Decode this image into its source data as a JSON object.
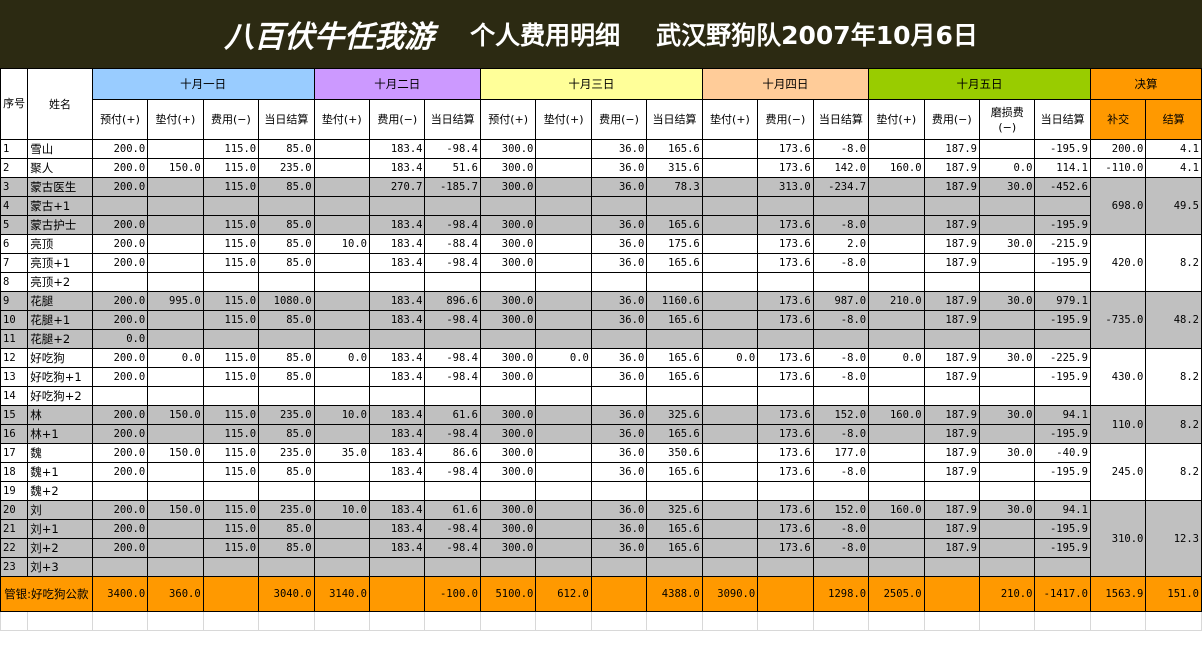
{
  "title": {
    "main": "八百伏牛任我游",
    "sub": "个人费用明细",
    "sub2": "武汉野狗队2007年10月6日"
  },
  "headers": {
    "seq": "序号",
    "name": "姓名",
    "days": [
      "十月一日",
      "十月二日",
      "十月三日",
      "十月四日",
      "十月五日"
    ],
    "settle": "决算",
    "sub": [
      [
        "预付(+)",
        "垫付(+)",
        "费用(−)",
        "当日结算"
      ],
      [
        "垫付(+)",
        "费用(−)",
        "当日结算"
      ],
      [
        "预付(+)",
        "垫付(+)",
        "费用(−)",
        "当日结算"
      ],
      [
        "垫付(+)",
        "费用(−)",
        "当日结算"
      ],
      [
        "垫付(+)",
        "费用(−)",
        "磨损费(−)",
        "当日结算"
      ],
      [
        "补交",
        "结算"
      ]
    ]
  },
  "colors": {
    "title_bg": "#2c2a12",
    "day1": "#99ccff",
    "day2": "#cc99ff",
    "day3": "#ffff99",
    "day4": "#ffcc99",
    "day5": "#99cc00",
    "settle": "#ff9900",
    "group_gray": "#c0c0c0",
    "footer": "#ff9900"
  },
  "rows": [
    {
      "seq": "1",
      "name": "雪山",
      "d1": [
        "200.0",
        "",
        "115.0",
        "85.0"
      ],
      "d2": [
        "",
        "183.4",
        "-98.4"
      ],
      "d3": [
        "300.0",
        "",
        "36.0",
        "165.6"
      ],
      "d4": [
        "",
        "173.6",
        "-8.0"
      ],
      "d5": [
        "",
        "187.9",
        "",
        "-195.9"
      ]
    },
    {
      "seq": "2",
      "name": "聚人",
      "d1": [
        "200.0",
        "150.0",
        "115.0",
        "235.0"
      ],
      "d2": [
        "",
        "183.4",
        "51.6"
      ],
      "d3": [
        "300.0",
        "",
        "36.0",
        "315.6"
      ],
      "d4": [
        "",
        "173.6",
        "142.0"
      ],
      "d5": [
        "160.0",
        "187.9",
        "0.0",
        "114.1"
      ]
    },
    {
      "seq": "3",
      "name": "蒙古医生",
      "d1": [
        "200.0",
        "",
        "115.0",
        "85.0"
      ],
      "d2": [
        "",
        "270.7",
        "-185.7"
      ],
      "d3": [
        "300.0",
        "",
        "36.0",
        "78.3"
      ],
      "d4": [
        "",
        "313.0",
        "-234.7"
      ],
      "d5": [
        "",
        "187.9",
        "30.0",
        "-452.6"
      ]
    },
    {
      "seq": "4",
      "name": "蒙古+1",
      "d1": [
        "",
        "",
        "",
        ""
      ],
      "d2": [
        "",
        "",
        ""
      ],
      "d3": [
        "",
        "",
        "",
        ""
      ],
      "d4": [
        "",
        "",
        ""
      ],
      "d5": [
        "",
        "",
        "",
        ""
      ]
    },
    {
      "seq": "5",
      "name": "蒙古护士",
      "d1": [
        "200.0",
        "",
        "115.0",
        "85.0"
      ],
      "d2": [
        "",
        "183.4",
        "-98.4"
      ],
      "d3": [
        "300.0",
        "",
        "36.0",
        "165.6"
      ],
      "d4": [
        "",
        "173.6",
        "-8.0"
      ],
      "d5": [
        "",
        "187.9",
        "",
        "-195.9"
      ]
    },
    {
      "seq": "6",
      "name": "亮顶",
      "d1": [
        "200.0",
        "",
        "115.0",
        "85.0"
      ],
      "d2": [
        "10.0",
        "183.4",
        "-88.4"
      ],
      "d3": [
        "300.0",
        "",
        "36.0",
        "175.6"
      ],
      "d4": [
        "",
        "173.6",
        "2.0"
      ],
      "d5": [
        "",
        "187.9",
        "30.0",
        "-215.9"
      ]
    },
    {
      "seq": "7",
      "name": "亮顶+1",
      "d1": [
        "200.0",
        "",
        "115.0",
        "85.0"
      ],
      "d2": [
        "",
        "183.4",
        "-98.4"
      ],
      "d3": [
        "300.0",
        "",
        "36.0",
        "165.6"
      ],
      "d4": [
        "",
        "173.6",
        "-8.0"
      ],
      "d5": [
        "",
        "187.9",
        "",
        "-195.9"
      ]
    },
    {
      "seq": "8",
      "name": "亮顶+2",
      "d1": [
        "",
        "",
        "",
        ""
      ],
      "d2": [
        "",
        "",
        ""
      ],
      "d3": [
        "",
        "",
        "",
        ""
      ],
      "d4": [
        "",
        "",
        ""
      ],
      "d5": [
        "",
        "",
        "",
        ""
      ]
    },
    {
      "seq": "9",
      "name": "花腿",
      "d1": [
        "200.0",
        "995.0",
        "115.0",
        "1080.0"
      ],
      "d2": [
        "",
        "183.4",
        "896.6"
      ],
      "d3": [
        "300.0",
        "",
        "36.0",
        "1160.6"
      ],
      "d4": [
        "",
        "173.6",
        "987.0"
      ],
      "d5": [
        "210.0",
        "187.9",
        "30.0",
        "979.1"
      ]
    },
    {
      "seq": "10",
      "name": "花腿+1",
      "d1": [
        "200.0",
        "",
        "115.0",
        "85.0"
      ],
      "d2": [
        "",
        "183.4",
        "-98.4"
      ],
      "d3": [
        "300.0",
        "",
        "36.0",
        "165.6"
      ],
      "d4": [
        "",
        "173.6",
        "-8.0"
      ],
      "d5": [
        "",
        "187.9",
        "",
        "-195.9"
      ]
    },
    {
      "seq": "11",
      "name": "花腿+2",
      "d1": [
        "0.0",
        "",
        "",
        ""
      ],
      "d2": [
        "",
        "",
        ""
      ],
      "d3": [
        "",
        "",
        "",
        ""
      ],
      "d4": [
        "",
        "",
        ""
      ],
      "d5": [
        "",
        "",
        "",
        ""
      ]
    },
    {
      "seq": "12",
      "name": "好吃狗",
      "d1": [
        "200.0",
        "0.0",
        "115.0",
        "85.0"
      ],
      "d2": [
        "0.0",
        "183.4",
        "-98.4"
      ],
      "d3": [
        "300.0",
        "0.0",
        "36.0",
        "165.6"
      ],
      "d4": [
        "0.0",
        "173.6",
        "-8.0"
      ],
      "d5": [
        "0.0",
        "187.9",
        "30.0",
        "-225.9"
      ]
    },
    {
      "seq": "13",
      "name": "好吃狗+1",
      "d1": [
        "200.0",
        "",
        "115.0",
        "85.0"
      ],
      "d2": [
        "",
        "183.4",
        "-98.4"
      ],
      "d3": [
        "300.0",
        "",
        "36.0",
        "165.6"
      ],
      "d4": [
        "",
        "173.6",
        "-8.0"
      ],
      "d5": [
        "",
        "187.9",
        "",
        "-195.9"
      ]
    },
    {
      "seq": "14",
      "name": "好吃狗+2",
      "d1": [
        "",
        "",
        "",
        ""
      ],
      "d2": [
        "",
        "",
        ""
      ],
      "d3": [
        "",
        "",
        "",
        ""
      ],
      "d4": [
        "",
        "",
        ""
      ],
      "d5": [
        "",
        "",
        "",
        ""
      ]
    },
    {
      "seq": "15",
      "name": "林",
      "d1": [
        "200.0",
        "150.0",
        "115.0",
        "235.0"
      ],
      "d2": [
        "10.0",
        "183.4",
        "61.6"
      ],
      "d3": [
        "300.0",
        "",
        "36.0",
        "325.6"
      ],
      "d4": [
        "",
        "173.6",
        "152.0"
      ],
      "d5": [
        "160.0",
        "187.9",
        "30.0",
        "94.1"
      ]
    },
    {
      "seq": "16",
      "name": "林+1",
      "d1": [
        "200.0",
        "",
        "115.0",
        "85.0"
      ],
      "d2": [
        "",
        "183.4",
        "-98.4"
      ],
      "d3": [
        "300.0",
        "",
        "36.0",
        "165.6"
      ],
      "d4": [
        "",
        "173.6",
        "-8.0"
      ],
      "d5": [
        "",
        "187.9",
        "",
        "-195.9"
      ]
    },
    {
      "seq": "17",
      "name": "魏",
      "d1": [
        "200.0",
        "150.0",
        "115.0",
        "235.0"
      ],
      "d2": [
        "35.0",
        "183.4",
        "86.6"
      ],
      "d3": [
        "300.0",
        "",
        "36.0",
        "350.6"
      ],
      "d4": [
        "",
        "173.6",
        "177.0"
      ],
      "d5": [
        "",
        "187.9",
        "30.0",
        "-40.9"
      ]
    },
    {
      "seq": "18",
      "name": "魏+1",
      "d1": [
        "200.0",
        "",
        "115.0",
        "85.0"
      ],
      "d2": [
        "",
        "183.4",
        "-98.4"
      ],
      "d3": [
        "300.0",
        "",
        "36.0",
        "165.6"
      ],
      "d4": [
        "",
        "173.6",
        "-8.0"
      ],
      "d5": [
        "",
        "187.9",
        "",
        "-195.9"
      ]
    },
    {
      "seq": "19",
      "name": "魏+2",
      "d1": [
        "",
        "",
        "",
        ""
      ],
      "d2": [
        "",
        "",
        ""
      ],
      "d3": [
        "",
        "",
        "",
        ""
      ],
      "d4": [
        "",
        "",
        ""
      ],
      "d5": [
        "",
        "",
        "",
        ""
      ]
    },
    {
      "seq": "20",
      "name": "刘",
      "d1": [
        "200.0",
        "150.0",
        "115.0",
        "235.0"
      ],
      "d2": [
        "10.0",
        "183.4",
        "61.6"
      ],
      "d3": [
        "300.0",
        "",
        "36.0",
        "325.6"
      ],
      "d4": [
        "",
        "173.6",
        "152.0"
      ],
      "d5": [
        "160.0",
        "187.9",
        "30.0",
        "94.1"
      ]
    },
    {
      "seq": "21",
      "name": "刘+1",
      "d1": [
        "200.0",
        "",
        "115.0",
        "85.0"
      ],
      "d2": [
        "",
        "183.4",
        "-98.4"
      ],
      "d3": [
        "300.0",
        "",
        "36.0",
        "165.6"
      ],
      "d4": [
        "",
        "173.6",
        "-8.0"
      ],
      "d5": [
        "",
        "187.9",
        "",
        "-195.9"
      ]
    },
    {
      "seq": "22",
      "name": "刘+2",
      "d1": [
        "200.0",
        "",
        "115.0",
        "85.0"
      ],
      "d2": [
        "",
        "183.4",
        "-98.4"
      ],
      "d3": [
        "300.0",
        "",
        "36.0",
        "165.6"
      ],
      "d4": [
        "",
        "173.6",
        "-8.0"
      ],
      "d5": [
        "",
        "187.9",
        "",
        "-195.9"
      ]
    },
    {
      "seq": "23",
      "name": "刘+3",
      "d1": [
        "",
        "",
        "",
        ""
      ],
      "d2": [
        "",
        "",
        ""
      ],
      "d3": [
        "",
        "",
        "",
        ""
      ],
      "d4": [
        "",
        "",
        ""
      ],
      "d5": [
        "",
        "",
        "",
        ""
      ]
    }
  ],
  "groups": [
    {
      "rows": [
        0
      ],
      "gray": false,
      "settle": [
        "200.0",
        "4.1"
      ]
    },
    {
      "rows": [
        1
      ],
      "gray": false,
      "settle": [
        "-110.0",
        "4.1"
      ]
    },
    {
      "rows": [
        2,
        3,
        4
      ],
      "gray": true,
      "settle": [
        "698.0",
        "49.5"
      ]
    },
    {
      "rows": [
        5,
        6,
        7
      ],
      "gray": false,
      "settle": [
        "420.0",
        "8.2"
      ]
    },
    {
      "rows": [
        8,
        9,
        10
      ],
      "gray": true,
      "settle": [
        "-735.0",
        "48.2"
      ]
    },
    {
      "rows": [
        11,
        12,
        13
      ],
      "gray": false,
      "settle": [
        "430.0",
        "8.2"
      ]
    },
    {
      "rows": [
        14,
        15
      ],
      "gray": true,
      "settle": [
        "110.0",
        "8.2"
      ]
    },
    {
      "rows": [
        16,
        17,
        18
      ],
      "gray": false,
      "settle": [
        "245.0",
        "8.2"
      ]
    },
    {
      "rows": [
        19,
        20,
        21,
        22
      ],
      "gray": true,
      "settle": [
        "310.0",
        "12.3"
      ]
    }
  ],
  "footer": {
    "label": "管银:好吃狗公款",
    "d1": [
      "3400.0",
      "360.0",
      "",
      "3040.0"
    ],
    "d2": [
      "3140.0",
      "",
      "-100.0"
    ],
    "d3": [
      "5100.0",
      "612.0",
      "",
      "4388.0"
    ],
    "d4": [
      "3090.0",
      "",
      "1298.0"
    ],
    "d5": [
      "2505.0",
      "",
      "210.0",
      "-1417.0"
    ],
    "settle": [
      "1563.9",
      "151.0"
    ]
  }
}
